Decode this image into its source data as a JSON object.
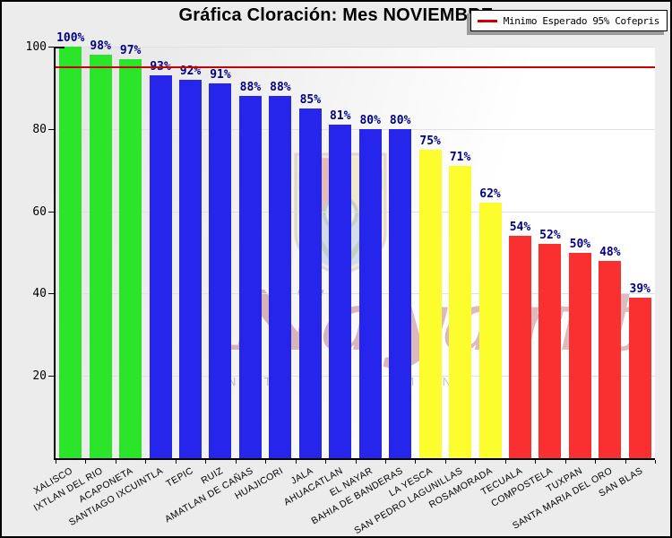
{
  "title": "Gráfica Cloración: Mes NOVIEMBRE",
  "legend": {
    "label": "Minimo Esperado 95% Cofepris"
  },
  "watermark": {
    "script_text": "Nayarit",
    "caps_fragments": "N T L T Y M N"
  },
  "colors": {
    "green": "#2be52b",
    "blue": "#2525ec",
    "yellow": "#fdfd2e",
    "red": "#fa3030",
    "threshold_line": "#cc0000",
    "value_label": "#000080"
  },
  "chart_data": {
    "type": "bar",
    "title": "Gráfica Cloración: Mes NOVIEMBRE",
    "categories": [
      "XALISCO",
      "IXTLAN DEL RIO",
      "ACAPONETA",
      "SANTIAGO IXCUINTLA",
      "TEPIC",
      "RUIZ",
      "AMATLAN DE CAÑAS",
      "HUAJICORI",
      "JALA",
      "AHUACATLAN",
      "EL NAYAR",
      "BAHIA DE BANDERAS",
      "LA YESCA",
      "SAN PEDRO LAGUNILLAS",
      "ROSAMORADA",
      "TECUALA",
      "COMPOSTELA",
      "TUXPAN",
      "SANTA MARIA DEL ORO",
      "SAN BLAS"
    ],
    "values": [
      100,
      98,
      97,
      93,
      92,
      91,
      88,
      88,
      85,
      81,
      80,
      80,
      75,
      71,
      62,
      54,
      52,
      50,
      48,
      39
    ],
    "bar_color_names": [
      "green",
      "green",
      "green",
      "blue",
      "blue",
      "blue",
      "blue",
      "blue",
      "blue",
      "blue",
      "blue",
      "blue",
      "yellow",
      "yellow",
      "yellow",
      "red",
      "red",
      "red",
      "red",
      "red"
    ],
    "value_label_suffix": "%",
    "xlabel": "",
    "ylabel": "",
    "ylim": [
      0,
      100
    ],
    "yticks": [
      20,
      40,
      60,
      80,
      100
    ],
    "grid": "horizontal",
    "threshold": {
      "value": 95,
      "label": "Minimo Esperado 95% Cofepris"
    },
    "legend_position": "top-right"
  }
}
